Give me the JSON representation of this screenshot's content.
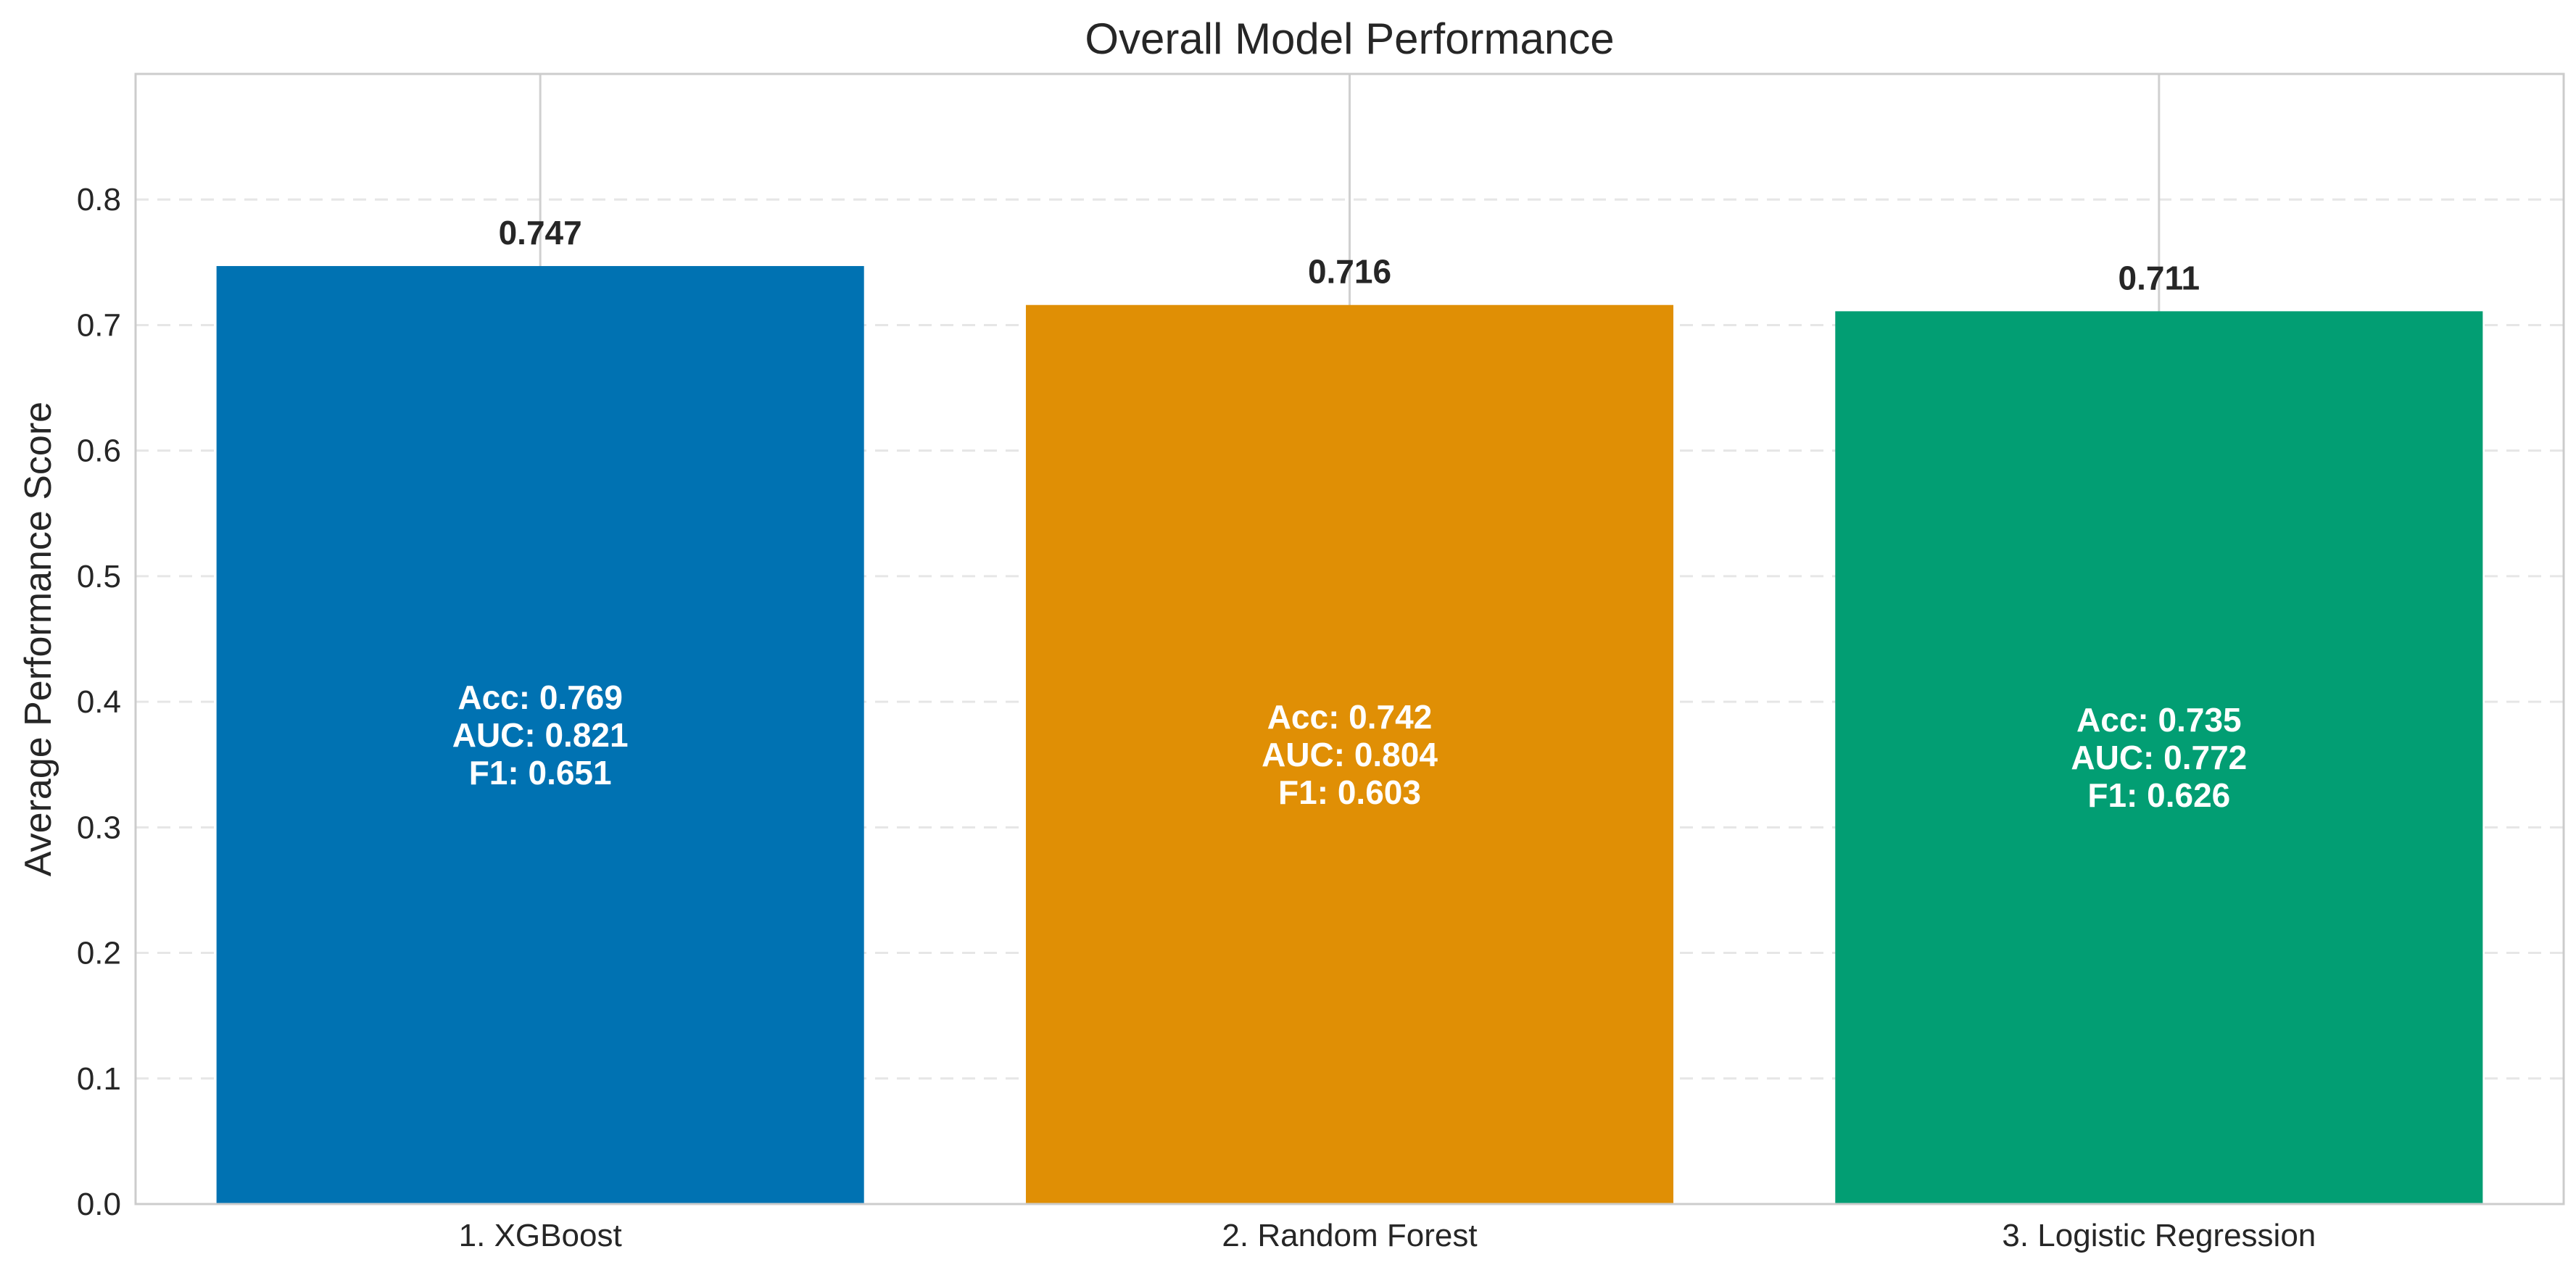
{
  "chart_data": {
    "type": "bar",
    "title": "Overall Model Performance",
    "xlabel": "",
    "ylabel": "Average Performance Score",
    "ylim": [
      0,
      0.9
    ],
    "yticks": [
      "0.0",
      "0.1",
      "0.2",
      "0.3",
      "0.4",
      "0.5",
      "0.6",
      "0.7",
      "0.8"
    ],
    "grid": true,
    "categories": [
      "1. XGBoost",
      "2. Random Forest",
      "3. Logistic Regression"
    ],
    "values": [
      0.747,
      0.716,
      0.711
    ],
    "value_labels": [
      "0.747",
      "0.716",
      "0.711"
    ],
    "colors": [
      "#0072b2",
      "#e08f05",
      "#029e73"
    ],
    "annotations": [
      [
        "Acc: 0.769",
        "AUC: 0.821",
        "F1: 0.651"
      ],
      [
        "Acc: 0.742",
        "AUC: 0.804",
        "F1: 0.603"
      ],
      [
        "Acc: 0.735",
        "AUC: 0.772",
        "F1: 0.626"
      ]
    ]
  }
}
